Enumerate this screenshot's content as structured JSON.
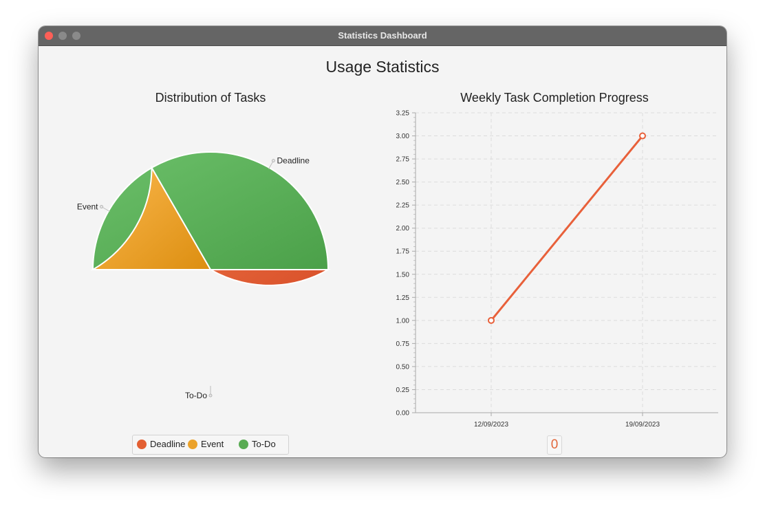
{
  "window": {
    "title": "Statistics Dashboard"
  },
  "page": {
    "title": "Usage Statistics"
  },
  "colors": {
    "deadline": "#e35f32",
    "event": "#eba22a",
    "todo": "#59ab53",
    "line": "#e8603a"
  },
  "counter": {
    "value": "0"
  },
  "legend": {
    "items": [
      {
        "label": "Deadline",
        "color": "#e35f32"
      },
      {
        "label": "Event",
        "color": "#eba22a"
      },
      {
        "label": "To-Do",
        "color": "#59ab53"
      }
    ]
  },
  "chart_data": [
    {
      "type": "pie",
      "title": "Distribution of Tasks",
      "labels": [
        "To-Do",
        "Deadline",
        "Event"
      ],
      "values": [
        3,
        2,
        1
      ],
      "colors": [
        "#59ab53",
        "#e35f32",
        "#eba22a"
      ],
      "legend": "bottom"
    },
    {
      "type": "line",
      "title": "Weekly Task Completion Progress",
      "x": [
        "12/09/2023",
        "19/09/2023"
      ],
      "series": [
        {
          "values": [
            1,
            3
          ],
          "color": "#e8603a"
        }
      ],
      "ylim": [
        0,
        3.25
      ],
      "yticks": [
        0,
        0.25,
        0.5,
        0.75,
        1,
        1.25,
        1.5,
        1.75,
        2,
        2.25,
        2.5,
        2.75,
        3,
        3.25
      ],
      "grid": true
    }
  ]
}
